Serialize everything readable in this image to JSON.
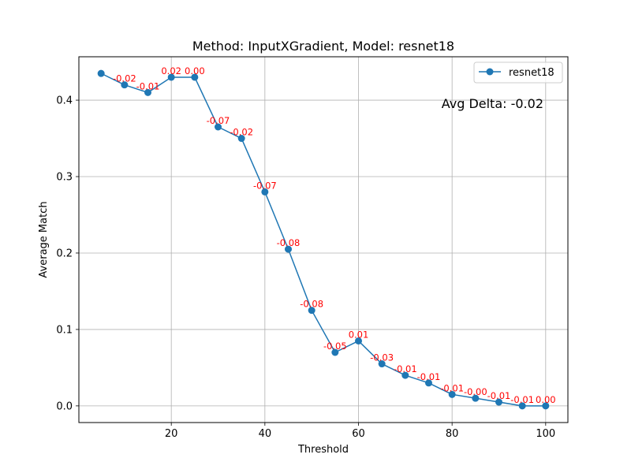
{
  "chart_data": {
    "type": "line",
    "title": "Method: InputXGradient, Model: resnet18",
    "xlabel": "Threshold",
    "ylabel": "Average Match",
    "xlim": [
      0.25,
      104.75
    ],
    "ylim": [
      -0.0218,
      0.4568
    ],
    "x_ticks": [
      20,
      40,
      60,
      80,
      100
    ],
    "y_ticks": [
      0.0,
      0.1,
      0.2,
      0.3,
      0.4
    ],
    "x_tick_labels": [
      "20",
      "40",
      "60",
      "80",
      "100"
    ],
    "y_tick_labels": [
      "0.0",
      "0.1",
      "0.2",
      "0.3",
      "0.4"
    ],
    "grid": true,
    "legend_position": "top-right",
    "series": [
      {
        "name": "resnet18",
        "color": "#1f77b4",
        "x": [
          5,
          10,
          15,
          20,
          25,
          30,
          35,
          40,
          45,
          50,
          55,
          60,
          65,
          70,
          75,
          80,
          85,
          90,
          95,
          100
        ],
        "values": [
          0.435,
          0.42,
          0.41,
          0.43,
          0.43,
          0.365,
          0.35,
          0.28,
          0.205,
          0.125,
          0.07,
          0.085,
          0.055,
          0.04,
          0.03,
          0.015,
          0.01,
          0.005,
          0.0,
          0.0
        ],
        "delta_labels": [
          "-0.02",
          "-0.01",
          "0.02",
          "0.00",
          "-0.07",
          "-0.02",
          "-0.07",
          "-0.08",
          "-0.08",
          "-0.05",
          "0.01",
          "-0.03",
          "-0.01",
          "-0.01",
          "-0.01",
          "-0.00",
          "-0.01",
          "-0.01",
          "0.00"
        ]
      }
    ],
    "annotation": "Avg Delta: -0.02",
    "annotation_color": "#ff0000"
  }
}
